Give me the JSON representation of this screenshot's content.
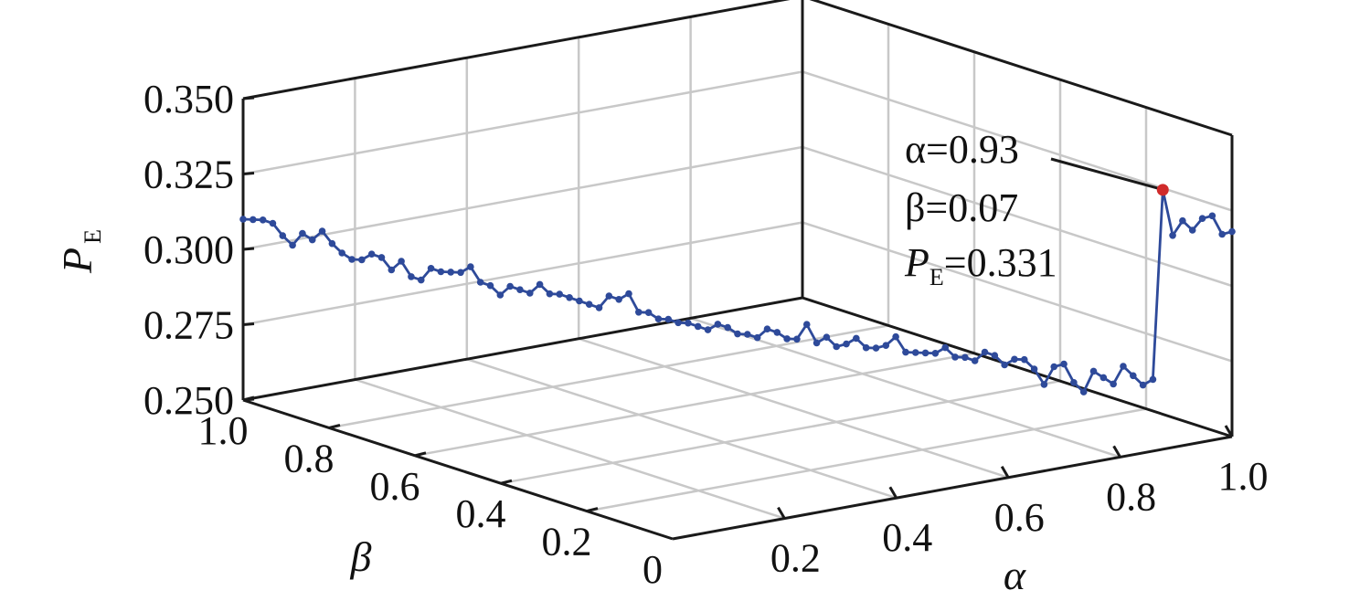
{
  "chart_data": {
    "type": "line",
    "projection": "3d",
    "zlabel": {
      "main": "P",
      "sub": "E"
    },
    "xlabel": "α",
    "ylabel": "β",
    "xlim": [
      0,
      1
    ],
    "ylim": [
      0,
      1
    ],
    "zlim": [
      0.25,
      0.35
    ],
    "x_ticks": [
      "0.2",
      "0.4",
      "0.6",
      "0.8",
      "1.0"
    ],
    "y_ticks": [
      "0",
      "0.2",
      "0.4",
      "0.6",
      "0.8",
      "1.0"
    ],
    "z_ticks": [
      "0.250",
      "0.275",
      "0.300",
      "0.325",
      "0.350"
    ],
    "grid": true,
    "series": [
      {
        "comment": "points lie on the plane alpha + beta = 1; x = alpha, y = beta",
        "color": "#2e4a9a",
        "x": [
          0.0,
          0.01,
          0.02,
          0.03,
          0.04,
          0.05,
          0.06,
          0.07,
          0.08,
          0.09,
          0.1,
          0.11,
          0.12,
          0.13,
          0.14,
          0.15,
          0.16,
          0.17,
          0.18,
          0.19,
          0.2,
          0.21,
          0.22,
          0.23,
          0.24,
          0.25,
          0.26,
          0.27,
          0.28,
          0.29,
          0.3,
          0.31,
          0.32,
          0.33,
          0.34,
          0.35,
          0.36,
          0.37,
          0.38,
          0.39,
          0.4,
          0.41,
          0.42,
          0.43,
          0.44,
          0.45,
          0.46,
          0.47,
          0.48,
          0.49,
          0.5,
          0.51,
          0.52,
          0.53,
          0.54,
          0.55,
          0.56,
          0.57,
          0.58,
          0.59,
          0.6,
          0.61,
          0.62,
          0.63,
          0.64,
          0.65,
          0.66,
          0.67,
          0.68,
          0.69,
          0.7,
          0.71,
          0.72,
          0.73,
          0.74,
          0.75,
          0.76,
          0.77,
          0.78,
          0.79,
          0.8,
          0.81,
          0.82,
          0.83,
          0.84,
          0.85,
          0.86,
          0.87,
          0.88,
          0.89,
          0.9,
          0.91,
          0.92,
          0.93,
          0.94,
          0.95,
          0.96,
          0.97,
          0.98,
          0.99,
          1.0
        ],
        "z": [
          0.31,
          0.31,
          0.31,
          0.309,
          0.305,
          0.302,
          0.306,
          0.304,
          0.307,
          0.303,
          0.3,
          0.298,
          0.298,
          0.3,
          0.299,
          0.295,
          0.298,
          0.293,
          0.292,
          0.296,
          0.295,
          0.295,
          0.295,
          0.297,
          0.292,
          0.291,
          0.288,
          0.291,
          0.29,
          0.289,
          0.292,
          0.289,
          0.289,
          0.288,
          0.287,
          0.286,
          0.285,
          0.289,
          0.288,
          0.29,
          0.284,
          0.284,
          0.282,
          0.282,
          0.281,
          0.281,
          0.28,
          0.279,
          0.281,
          0.28,
          0.278,
          0.278,
          0.277,
          0.28,
          0.279,
          0.277,
          0.277,
          0.282,
          0.276,
          0.278,
          0.275,
          0.276,
          0.278,
          0.275,
          0.275,
          0.276,
          0.279,
          0.274,
          0.274,
          0.274,
          0.274,
          0.276,
          0.273,
          0.273,
          0.272,
          0.275,
          0.274,
          0.271,
          0.273,
          0.273,
          0.27,
          0.265,
          0.271,
          0.272,
          0.266,
          0.263,
          0.27,
          0.268,
          0.266,
          0.272,
          0.269,
          0.266,
          0.268,
          0.331,
          0.316,
          0.321,
          0.318,
          0.322,
          0.323,
          0.317,
          0.318
        ]
      }
    ],
    "highlight": {
      "x": 0.93,
      "y": 0.07,
      "z": 0.331,
      "color": "#d02b2b"
    },
    "annotation": {
      "alpha_label": "α=0.93",
      "beta_label": "β=0.07",
      "pe_label_main": "P",
      "pe_label_sub": "E",
      "pe_label_value": "=0.331"
    }
  }
}
